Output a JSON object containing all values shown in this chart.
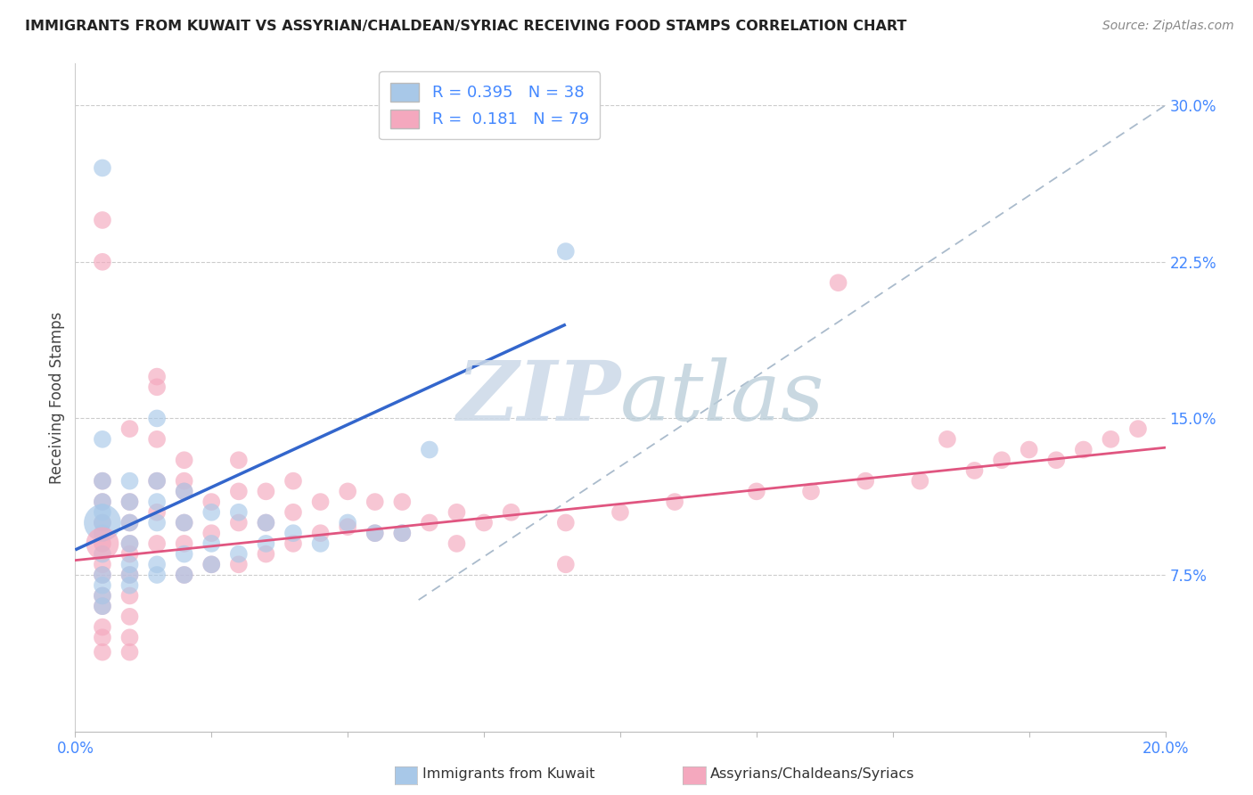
{
  "title": "IMMIGRANTS FROM KUWAIT VS ASSYRIAN/CHALDEAN/SYRIAC RECEIVING FOOD STAMPS CORRELATION CHART",
  "source": "Source: ZipAtlas.com",
  "ylabel": "Receiving Food Stamps",
  "xlim": [
    0.0,
    0.2
  ],
  "ylim": [
    0.0,
    0.32
  ],
  "blue_R": 0.395,
  "blue_N": 38,
  "pink_R": 0.181,
  "pink_N": 79,
  "blue_color": "#a8c8e8",
  "pink_color": "#f4a8be",
  "blue_line_color": "#3366cc",
  "pink_line_color": "#e05580",
  "ref_line_color": "#aabbcc",
  "watermark_color": "#d0dde8",
  "grid_color": "#cccccc",
  "tick_label_color": "#4488ff",
  "title_color": "#222222",
  "source_color": "#888888",
  "legend_label_color": "#4488ff",
  "ylabel_color": "#444444",
  "blue_line_x": [
    0.0,
    0.09
  ],
  "blue_line_y": [
    0.087,
    0.195
  ],
  "pink_line_x": [
    0.0,
    0.2
  ],
  "pink_line_y": [
    0.082,
    0.136
  ],
  "ref_line_x": [
    0.063,
    0.2
  ],
  "ref_line_y": [
    0.063,
    0.3
  ],
  "blue_scatter_x": [
    0.005,
    0.005,
    0.005,
    0.005,
    0.005,
    0.005,
    0.005,
    0.005,
    0.01,
    0.01,
    0.01,
    0.01,
    0.01,
    0.015,
    0.015,
    0.015,
    0.02,
    0.02,
    0.025,
    0.03,
    0.035,
    0.04,
    0.05,
    0.055,
    0.06,
    0.065,
    0.09,
    0.005,
    0.015,
    0.005,
    0.005,
    0.005,
    0.01,
    0.01,
    0.015,
    0.015,
    0.02,
    0.02,
    0.025,
    0.025,
    0.03,
    0.035,
    0.045
  ],
  "blue_scatter_y": [
    0.14,
    0.12,
    0.11,
    0.105,
    0.1,
    0.095,
    0.085,
    0.075,
    0.12,
    0.11,
    0.1,
    0.09,
    0.08,
    0.15,
    0.12,
    0.1,
    0.115,
    0.1,
    0.105,
    0.105,
    0.1,
    0.095,
    0.1,
    0.095,
    0.095,
    0.135,
    0.23,
    0.27,
    0.11,
    0.07,
    0.065,
    0.06,
    0.075,
    0.07,
    0.08,
    0.075,
    0.085,
    0.075,
    0.09,
    0.08,
    0.085,
    0.09,
    0.09
  ],
  "pink_scatter_x": [
    0.005,
    0.005,
    0.005,
    0.005,
    0.005,
    0.005,
    0.005,
    0.005,
    0.005,
    0.005,
    0.005,
    0.01,
    0.01,
    0.01,
    0.01,
    0.01,
    0.01,
    0.01,
    0.01,
    0.01,
    0.015,
    0.015,
    0.015,
    0.015,
    0.015,
    0.02,
    0.02,
    0.02,
    0.02,
    0.02,
    0.025,
    0.025,
    0.025,
    0.03,
    0.03,
    0.03,
    0.03,
    0.035,
    0.035,
    0.035,
    0.04,
    0.04,
    0.04,
    0.045,
    0.045,
    0.05,
    0.05,
    0.055,
    0.055,
    0.06,
    0.06,
    0.065,
    0.07,
    0.07,
    0.075,
    0.08,
    0.09,
    0.1,
    0.11,
    0.125,
    0.135,
    0.145,
    0.155,
    0.165,
    0.17,
    0.185,
    0.19,
    0.195,
    0.005,
    0.005,
    0.01,
    0.015,
    0.02,
    0.09,
    0.14,
    0.16,
    0.175,
    0.18
  ],
  "pink_scatter_y": [
    0.12,
    0.11,
    0.1,
    0.09,
    0.08,
    0.075,
    0.065,
    0.06,
    0.05,
    0.045,
    0.038,
    0.11,
    0.1,
    0.09,
    0.085,
    0.075,
    0.065,
    0.055,
    0.045,
    0.038,
    0.17,
    0.14,
    0.12,
    0.105,
    0.09,
    0.13,
    0.115,
    0.1,
    0.09,
    0.075,
    0.11,
    0.095,
    0.08,
    0.13,
    0.115,
    0.1,
    0.08,
    0.115,
    0.1,
    0.085,
    0.12,
    0.105,
    0.09,
    0.11,
    0.095,
    0.115,
    0.098,
    0.11,
    0.095,
    0.11,
    0.095,
    0.1,
    0.105,
    0.09,
    0.1,
    0.105,
    0.1,
    0.105,
    0.11,
    0.115,
    0.115,
    0.12,
    0.12,
    0.125,
    0.13,
    0.135,
    0.14,
    0.145,
    0.245,
    0.225,
    0.145,
    0.165,
    0.12,
    0.08,
    0.215,
    0.14,
    0.135,
    0.13
  ]
}
